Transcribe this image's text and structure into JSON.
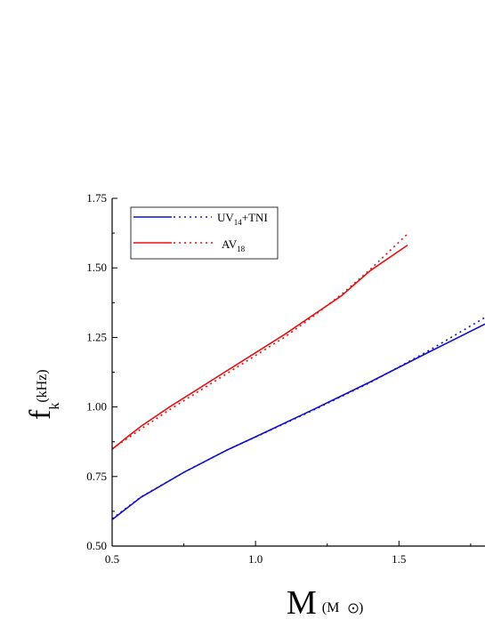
{
  "chart_data": {
    "type": "line",
    "xlim": [
      0.5,
      1.8
    ],
    "ylim": [
      0.5,
      1.75
    ],
    "x_ticks": [
      "0.5",
      "1.0",
      "1.5"
    ],
    "y_ticks": [
      "0.50",
      "0.75",
      "1.00",
      "1.25",
      "1.50",
      "1.75"
    ],
    "xlabel": {
      "main": "M",
      "unit": "(M",
      "unit_close": ")"
    },
    "ylabel": {
      "main": "f",
      "sub": "k",
      "unit": "(kHz)"
    },
    "legend_position": "top-left",
    "series": [
      {
        "name": "UV14+TNI",
        "name_main": "UV",
        "name_sub": "14",
        "name_rest": "+TNI",
        "color": "#1010d0",
        "solid": {
          "x": [
            0.5,
            0.6,
            0.75,
            0.9,
            1.0,
            1.2,
            1.4,
            1.6,
            1.8
          ],
          "y": [
            0.595,
            0.675,
            0.765,
            0.845,
            0.893,
            0.99,
            1.09,
            1.195,
            1.298
          ]
        },
        "dotted": {
          "x": [
            0.5,
            0.6,
            0.75,
            0.9,
            1.0,
            1.2,
            1.4,
            1.6,
            1.8
          ],
          "y": [
            0.598,
            0.676,
            0.765,
            0.845,
            0.892,
            0.988,
            1.088,
            1.2,
            1.322
          ]
        }
      },
      {
        "name": "AV18",
        "name_main": "AV",
        "name_sub": "18",
        "name_rest": "",
        "color": "#e81010",
        "solid": {
          "x": [
            0.5,
            0.55,
            0.6,
            0.7,
            0.8,
            0.9,
            1.0,
            1.1,
            1.2,
            1.3,
            1.4,
            1.53
          ],
          "y": [
            0.848,
            0.89,
            0.93,
            1.0,
            1.065,
            1.13,
            1.195,
            1.26,
            1.33,
            1.4,
            1.49,
            1.582
          ]
        },
        "dotted": {
          "x": [
            0.5,
            0.55,
            0.6,
            0.7,
            0.8,
            0.9,
            1.0,
            1.1,
            1.2,
            1.3,
            1.4,
            1.53
          ],
          "y": [
            0.85,
            0.885,
            0.92,
            0.99,
            1.055,
            1.12,
            1.185,
            1.25,
            1.325,
            1.405,
            1.495,
            1.622
          ]
        }
      }
    ]
  }
}
